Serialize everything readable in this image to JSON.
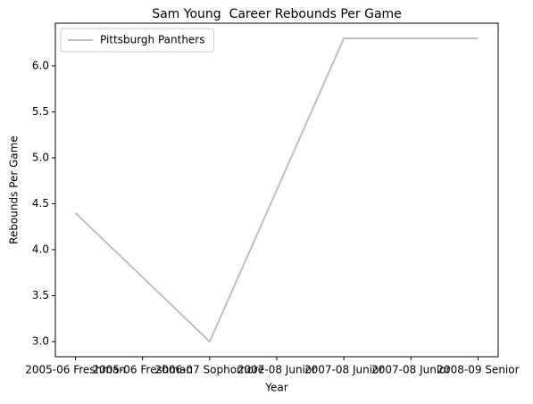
{
  "chart_data": {
    "type": "line",
    "title": "Sam Young  Career Rebounds Per Game",
    "xlabel": "Year",
    "ylabel": "Rebounds Per Game",
    "x": [
      0,
      1,
      2,
      3
    ],
    "series": [
      {
        "name": "Pittsburgh Panthers",
        "color": "#bfbfbf",
        "values": [
          4.4,
          3.0,
          6.3,
          6.3
        ]
      }
    ],
    "xlim": [
      -0.15,
      3.15
    ],
    "xticks": [
      {
        "value": 0,
        "label": "2005-06 Freshman"
      },
      {
        "value": 0.5,
        "label": "2005-06 Freshman"
      },
      {
        "value": 1,
        "label": "2006-07 Sophomore"
      },
      {
        "value": 1.5,
        "label": "2007-08 Junior"
      },
      {
        "value": 2,
        "label": "2007-08 Junior"
      },
      {
        "value": 2.5,
        "label": "2007-08 Junior"
      },
      {
        "value": 3,
        "label": "2008-09 Senior"
      }
    ],
    "ylim": [
      2.835,
      6.465
    ],
    "yticks": [
      {
        "value": 3.0,
        "label": "3.0"
      },
      {
        "value": 3.5,
        "label": "3.5"
      },
      {
        "value": 4.0,
        "label": "4.0"
      },
      {
        "value": 4.5,
        "label": "4.5"
      },
      {
        "value": 5.0,
        "label": "5.0"
      },
      {
        "value": 5.5,
        "label": "5.5"
      },
      {
        "value": 6.0,
        "label": "6.0"
      }
    ],
    "legend": "upper left",
    "grid": false
  }
}
